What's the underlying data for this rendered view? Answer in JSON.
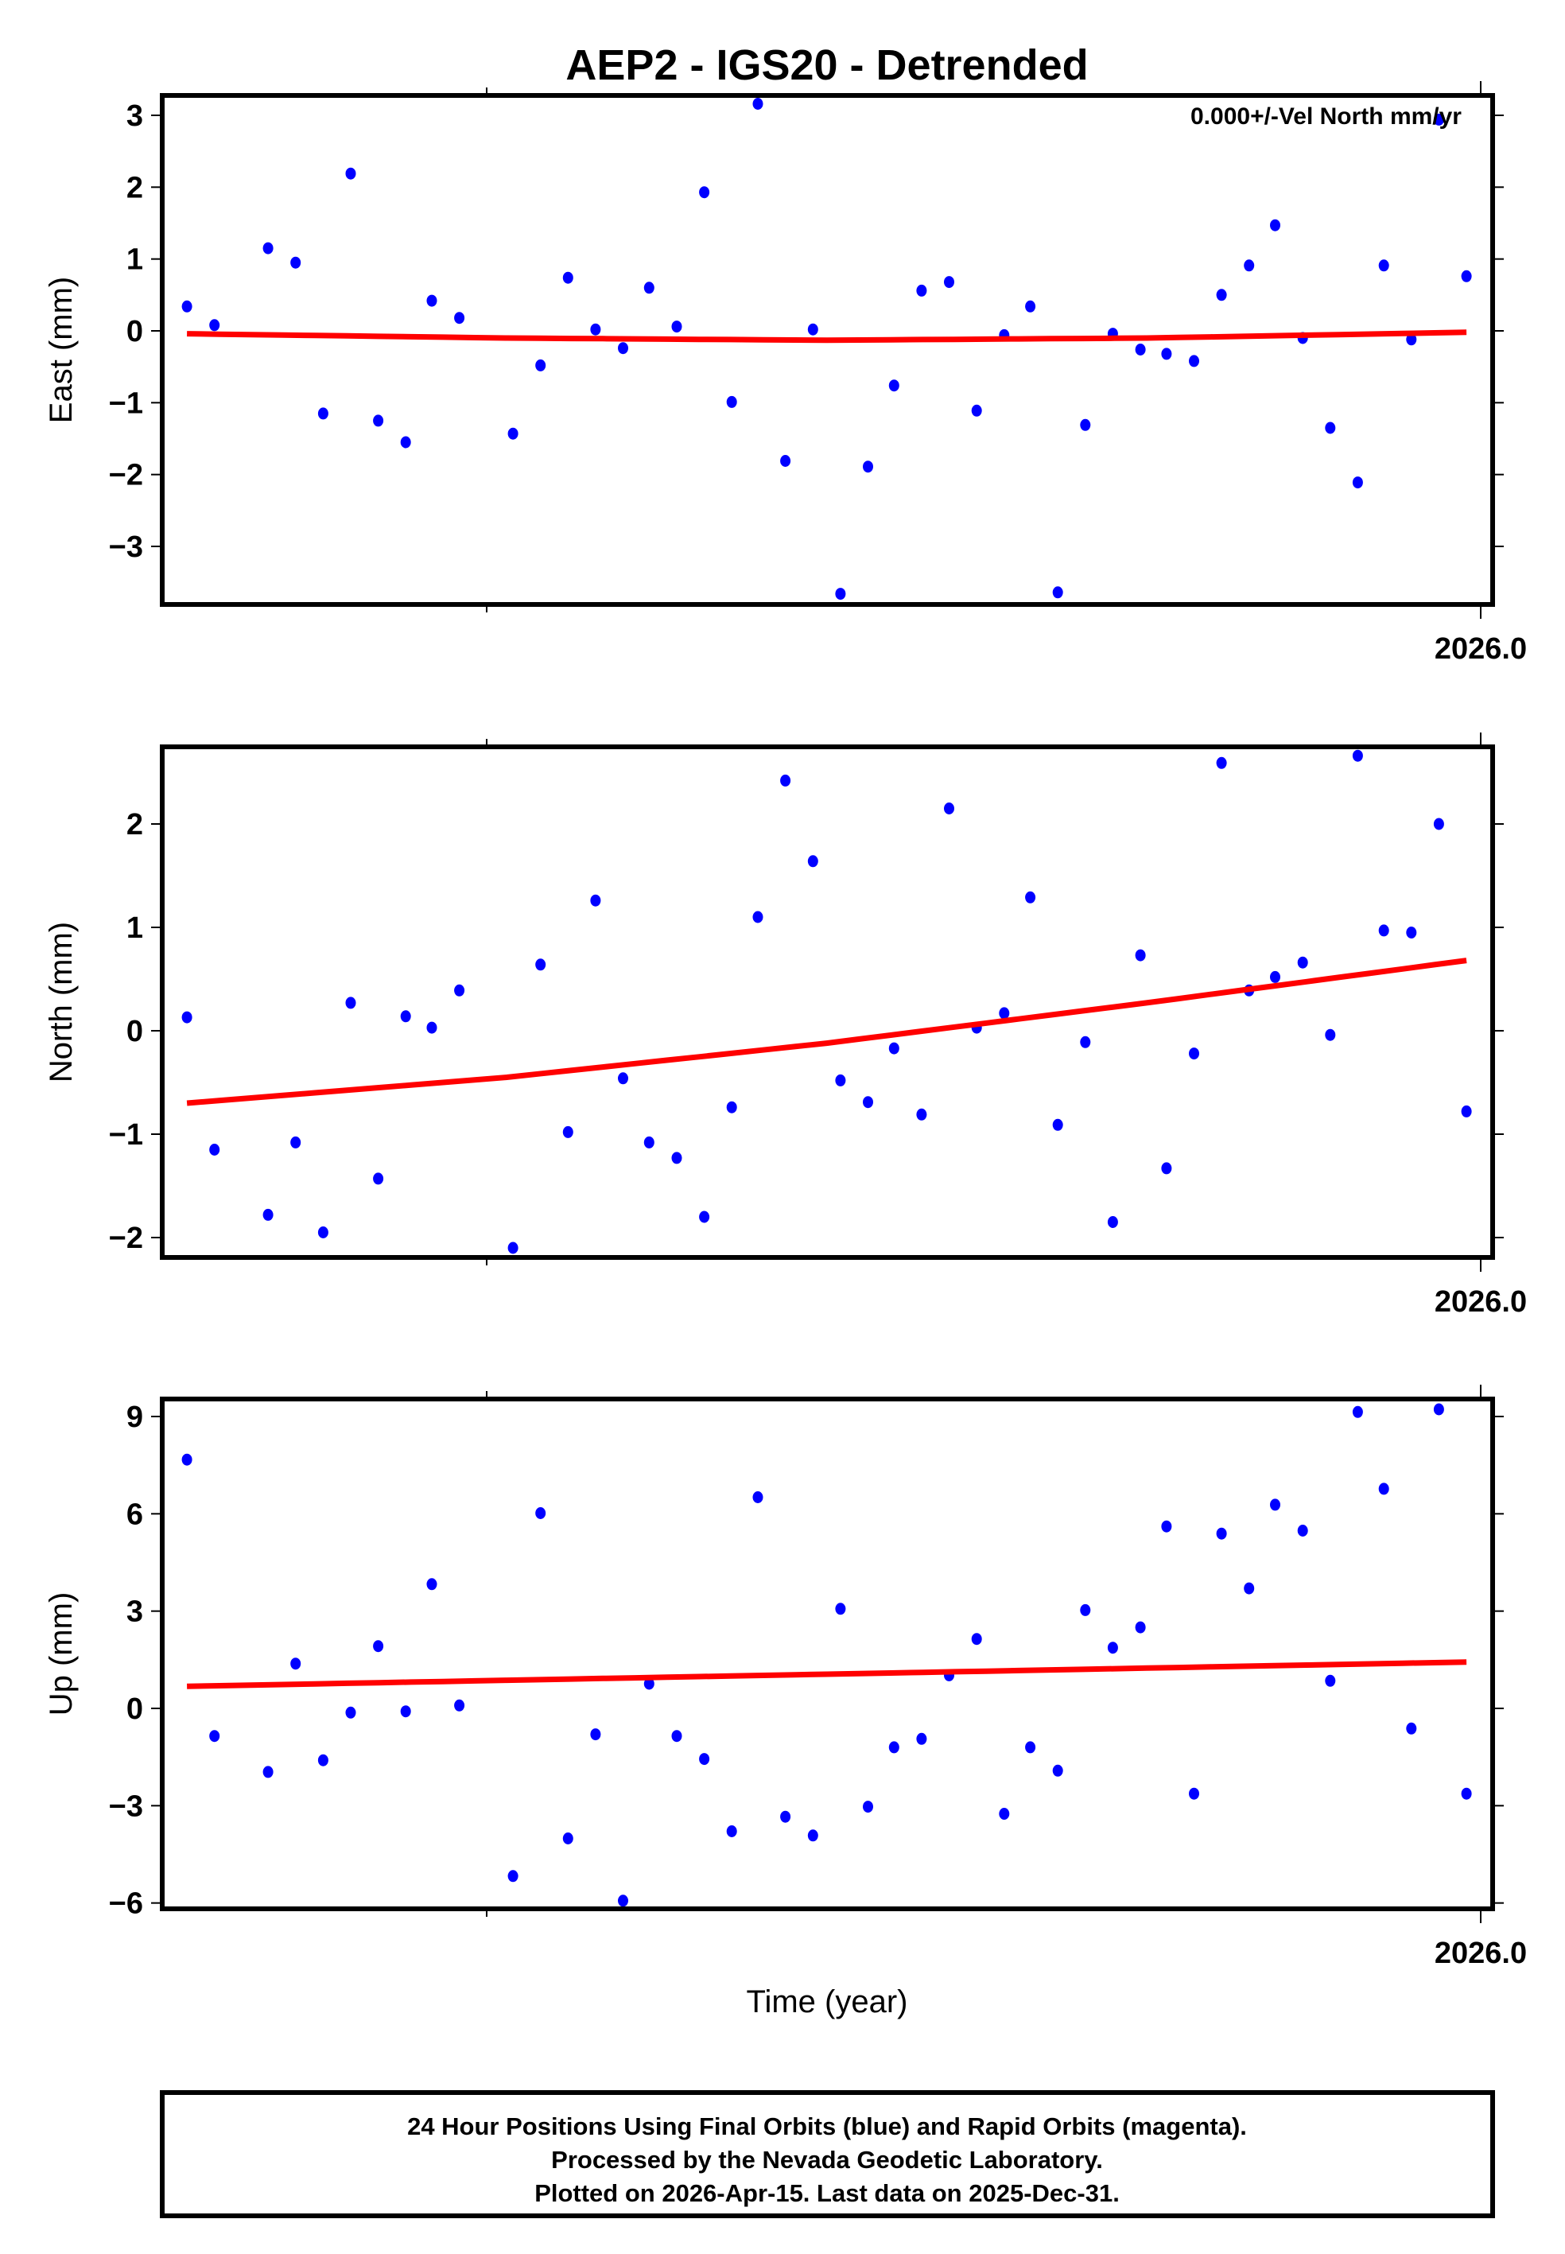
{
  "title": "AEP2 - IGS20 - Detrended",
  "annotation": "0.000+/-Vel North mm/yr",
  "xlabel": "Time (year)",
  "x_tick_label": "2026.0",
  "footer": {
    "line1": "24 Hour Positions Using Final Orbits (blue) and Rapid Orbits (magenta).",
    "line2": "Processed by the Nevada Geodetic Laboratory.",
    "line3": "Plotted on 2026-Apr-15. Last data on 2025-Dec-31."
  },
  "colors": {
    "final_orbits": "#0000ff",
    "rapid_orbits": "#ff00ff",
    "trend": "#ff0000",
    "frame": "#000000"
  },
  "chart_data": [
    {
      "type": "scatter",
      "panel": "east",
      "title": "AEP2 - IGS20 - Detrended",
      "xlabel": "",
      "ylabel": "East (mm)",
      "yticks": [
        -3,
        -2,
        -1,
        0,
        1,
        2,
        3
      ],
      "ylim": [
        -3.75,
        3.3
      ],
      "x_tick_labels": [
        "2026.0"
      ],
      "grid": false,
      "annotation": "0.000+/-Vel North mm/yr",
      "series": [
        {
          "name": "Final Orbits",
          "color": "#0000ff",
          "values": [
            0.34,
            0.08,
            1.15,
            0.95,
            -1.15,
            2.19,
            -1.25,
            -1.55,
            0.42,
            0.18,
            -1.43,
            -0.48,
            0.74,
            0.02,
            -0.24,
            0.6,
            0.06,
            1.93,
            -0.99,
            3.16,
            -1.81,
            0.02,
            -3.66,
            -1.89,
            -0.76,
            0.56,
            0.68,
            -1.11,
            -0.06,
            0.34,
            -3.64,
            -1.31,
            -0.04,
            -0.26,
            -0.32,
            -0.42,
            0.5,
            0.91,
            1.47,
            -0.1,
            -1.35,
            -2.11,
            0.91,
            -0.12,
            2.94,
            0.76
          ]
        }
      ],
      "trend": {
        "name": "Fit",
        "color": "#ff0000",
        "values_at": [
          0,
          0.25,
          0.5,
          0.75,
          1
        ],
        "values": [
          -0.04,
          -0.1,
          -0.13,
          -0.1,
          -0.02
        ]
      }
    },
    {
      "type": "scatter",
      "panel": "north",
      "xlabel": "",
      "ylabel": "North (mm)",
      "yticks": [
        -2,
        -1,
        0,
        1,
        2
      ],
      "ylim": [
        -2.2,
        2.75
      ],
      "x_tick_labels": [
        "2026.0"
      ],
      "grid": false,
      "series": [
        {
          "name": "Final Orbits",
          "color": "#0000ff",
          "values": [
            0.13,
            -1.15,
            -1.78,
            -1.08,
            -1.95,
            0.27,
            -1.43,
            0.14,
            0.03,
            0.39,
            -2.1,
            0.64,
            -0.98,
            1.26,
            -0.46,
            -1.08,
            -1.23,
            -1.8,
            -0.74,
            1.1,
            2.42,
            1.64,
            -0.48,
            -0.69,
            -0.17,
            -0.81,
            2.15,
            0.03,
            0.17,
            1.29,
            -0.91,
            -0.11,
            -1.85,
            0.73,
            -1.33,
            -0.22,
            2.59,
            0.39,
            0.52,
            0.66,
            -0.04,
            2.66,
            0.97,
            0.95,
            2.0,
            -0.78
          ]
        }
      ],
      "trend": {
        "name": "Fit",
        "color": "#ff0000",
        "values_at": [
          0,
          0.25,
          0.5,
          0.75,
          1
        ],
        "values": [
          -0.7,
          -0.45,
          -0.12,
          0.27,
          0.68
        ]
      }
    },
    {
      "type": "scatter",
      "panel": "up",
      "xlabel": "Time (year)",
      "ylabel": "Up (mm)",
      "yticks": [
        -6,
        -3,
        0,
        3,
        6,
        9
      ],
      "ylim": [
        -6.1,
        9.5
      ],
      "x_tick_labels": [
        "2026.0"
      ],
      "grid": false,
      "series": [
        {
          "name": "Final Orbits",
          "color": "#0000ff",
          "values": [
            7.67,
            -0.85,
            -1.96,
            1.38,
            -1.6,
            -0.13,
            1.92,
            -0.09,
            3.83,
            0.09,
            -5.17,
            6.02,
            -4.01,
            -0.8,
            -5.93,
            0.76,
            -0.85,
            -1.56,
            -3.79,
            6.51,
            -3.34,
            -3.92,
            3.07,
            -3.03,
            -1.2,
            -0.94,
            1.02,
            2.14,
            -3.25,
            -1.2,
            -1.92,
            3.03,
            1.87,
            2.5,
            5.61,
            -2.63,
            5.39,
            3.7,
            6.28,
            5.48,
            0.85,
            9.14,
            6.77,
            -0.62,
            9.22,
            -2.63
          ]
        }
      ],
      "trend": {
        "name": "Fit",
        "color": "#ff0000",
        "values_at": [
          0,
          1
        ],
        "values": [
          0.68,
          1.43
        ]
      }
    }
  ],
  "x_positions_preview": [
    129,
    148,
    185,
    204,
    223,
    242,
    261,
    280,
    298,
    317,
    354,
    373,
    392,
    411,
    430,
    448,
    467,
    486,
    505,
    523,
    542,
    561,
    580,
    599,
    617,
    636,
    655,
    674,
    693,
    711,
    730,
    749,
    768,
    787,
    805,
    824,
    843,
    862,
    880,
    899,
    918,
    937,
    955,
    974,
    993,
    1012
  ]
}
